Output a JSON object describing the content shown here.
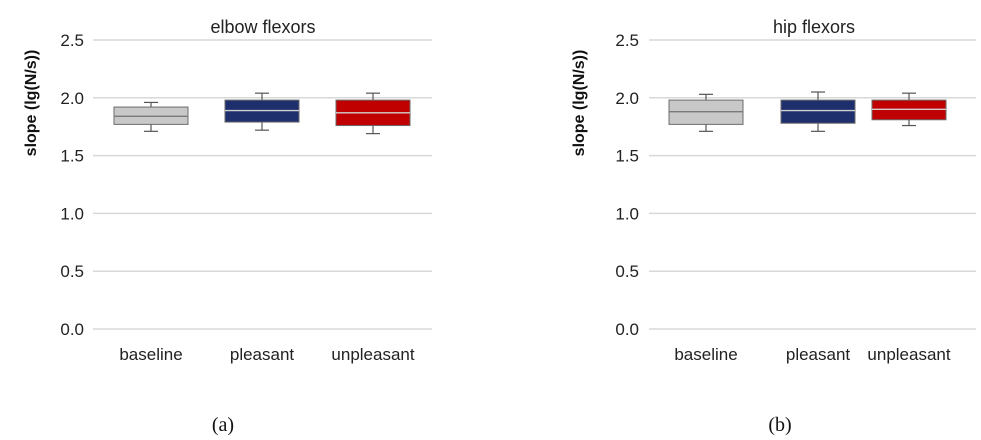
{
  "chart_data": [
    {
      "type": "boxplot",
      "title": "elbow flexors",
      "ylabel": "slope (lg(N/s))",
      "panel_label": "(a)",
      "ylim": [
        0,
        2.5
      ],
      "yticks": [
        "0.0",
        "0.5",
        "1.0",
        "1.5",
        "2.0",
        "2.5"
      ],
      "grid": true,
      "categories": [
        "baseline",
        "pleasant",
        "unpleasant"
      ],
      "boxes": [
        {
          "category": "baseline",
          "color": "#c8c8c8",
          "min": 1.71,
          "q1": 1.77,
          "median": 1.84,
          "q3": 1.92,
          "max": 1.96
        },
        {
          "category": "pleasant",
          "color": "#1f2f6e",
          "min": 1.72,
          "q1": 1.79,
          "median": 1.89,
          "q3": 1.98,
          "max": 2.04
        },
        {
          "category": "unpleasant",
          "color": "#c00000",
          "min": 1.69,
          "q1": 1.76,
          "median": 1.87,
          "q3": 1.98,
          "max": 2.04
        }
      ]
    },
    {
      "type": "boxplot",
      "title": "hip flexors",
      "ylabel": "slope (lg(N/s))",
      "panel_label": "(b)",
      "ylim": [
        0,
        2.5
      ],
      "yticks": [
        "0.0",
        "0.5",
        "1.0",
        "1.5",
        "2.0",
        "2.5"
      ],
      "grid": true,
      "categories": [
        "baseline",
        "pleasant",
        "unpleasant"
      ],
      "boxes": [
        {
          "category": "baseline",
          "color": "#c8c8c8",
          "min": 1.71,
          "q1": 1.77,
          "median": 1.88,
          "q3": 1.98,
          "max": 2.03
        },
        {
          "category": "pleasant",
          "color": "#1f2f6e",
          "min": 1.71,
          "q1": 1.78,
          "median": 1.89,
          "q3": 1.98,
          "max": 2.05
        },
        {
          "category": "unpleasant",
          "color": "#c00000",
          "min": 1.76,
          "q1": 1.81,
          "median": 1.9,
          "q3": 1.98,
          "max": 2.04
        }
      ]
    }
  ]
}
